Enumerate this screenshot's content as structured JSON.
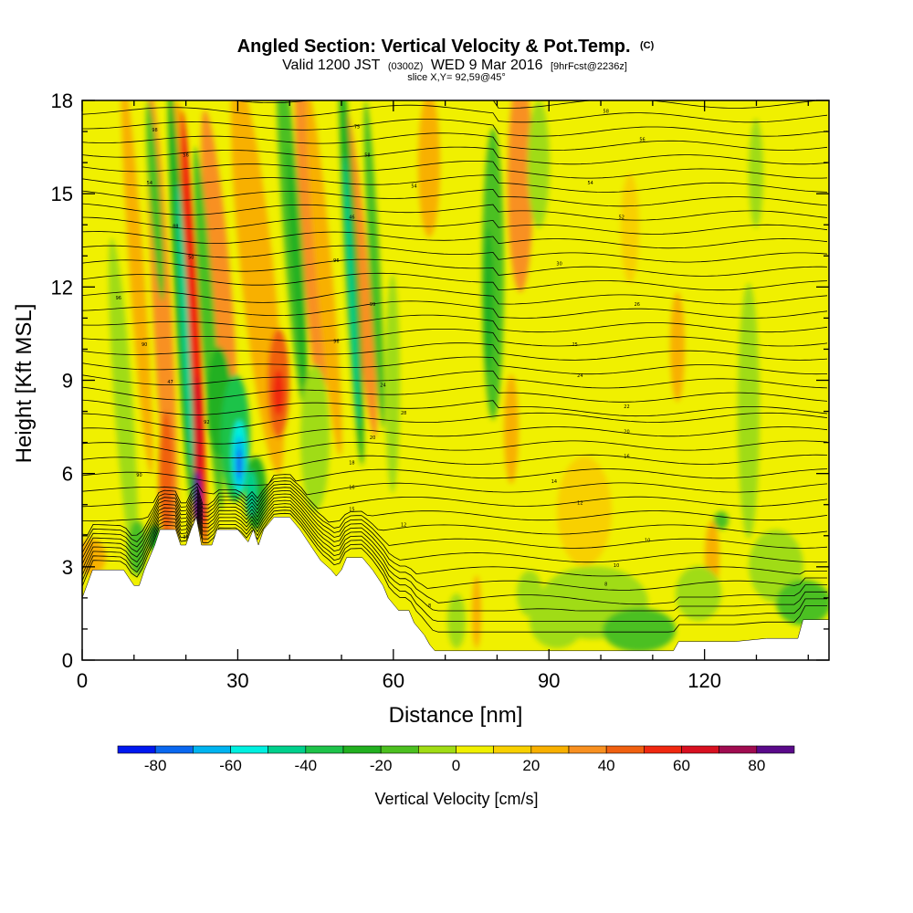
{
  "header": {
    "title": "Angled Section: Vertical Velocity & Pot.Temp.",
    "title_unit": "(C)",
    "valid_prefix": "Valid 1200 JST",
    "valid_utc": "(0300Z)",
    "valid_date": "WED 9 Mar 2016",
    "forecast_tag": "[9hrFcst@2236z]",
    "slice": "slice X,Y= 92,59@45°"
  },
  "chart_data": {
    "type": "heatmap",
    "xlabel": "Distance [nm]",
    "ylabel": "Height [Kft MSL]",
    "xlim": [
      0,
      144
    ],
    "ylim": [
      0,
      18
    ],
    "x_ticks": [
      "0",
      "30",
      "60",
      "90",
      "120"
    ],
    "y_ticks": [
      "0",
      "3",
      "6",
      "9",
      "12",
      "15",
      "18"
    ],
    "colorbar": {
      "title": "Vertical Velocity [cm/s]",
      "levels": [
        -90,
        -80,
        -70,
        -60,
        -50,
        -40,
        -30,
        -20,
        -10,
        0,
        10,
        20,
        30,
        40,
        50,
        60,
        70,
        80,
        90
      ],
      "tick_labels": [
        "-80",
        "-60",
        "-40",
        "-20",
        "0",
        "20",
        "40",
        "60",
        "80"
      ],
      "tick_values": [
        -80,
        -60,
        -40,
        -20,
        0,
        20,
        40,
        60,
        80
      ],
      "colors": [
        "#0018f0",
        "#0a68f0",
        "#00b4f0",
        "#00f0e0",
        "#00d08c",
        "#1ec34a",
        "#22b020",
        "#4cc020",
        "#a0dc14",
        "#f0f000",
        "#f8d000",
        "#f8b000",
        "#f89020",
        "#f06010",
        "#f02810",
        "#d81020",
        "#a00c50",
        "#5a0a8a"
      ]
    },
    "terrain": [
      [
        0,
        2.0
      ],
      [
        2,
        2.9
      ],
      [
        8,
        2.9
      ],
      [
        10,
        2.4
      ],
      [
        11,
        2.4
      ],
      [
        12,
        2.9
      ],
      [
        14,
        3.7
      ],
      [
        15,
        4.2
      ],
      [
        18,
        4.2
      ],
      [
        19,
        3.7
      ],
      [
        20,
        3.7
      ],
      [
        21,
        4.2
      ],
      [
        22,
        4.6
      ],
      [
        23,
        3.7
      ],
      [
        25,
        3.7
      ],
      [
        26,
        4.2
      ],
      [
        28,
        4.2
      ],
      [
        30,
        4.2
      ],
      [
        32,
        3.8
      ],
      [
        33,
        4.2
      ],
      [
        34,
        3.7
      ],
      [
        35,
        4.2
      ],
      [
        37,
        4.6
      ],
      [
        40,
        4.6
      ],
      [
        42,
        4.2
      ],
      [
        44,
        3.7
      ],
      [
        46,
        3.2
      ],
      [
        48,
        2.9
      ],
      [
        49,
        2.7
      ],
      [
        50,
        2.9
      ],
      [
        51,
        3.3
      ],
      [
        54,
        3.3
      ],
      [
        56,
        2.9
      ],
      [
        58,
        2.4
      ],
      [
        59,
        2.0
      ],
      [
        61,
        1.6
      ],
      [
        63,
        1.6
      ],
      [
        64,
        1.2
      ],
      [
        66,
        0.8
      ],
      [
        67,
        0.5
      ],
      [
        68,
        0.3
      ],
      [
        114,
        0.3
      ],
      [
        115,
        0.6
      ],
      [
        126,
        0.6
      ],
      [
        132,
        0.7
      ],
      [
        138,
        0.7
      ],
      [
        139,
        1.3
      ],
      [
        144,
        1.3
      ]
    ],
    "theta_labels": [
      [
        14,
        17.0,
        "98"
      ],
      [
        20,
        16.2,
        "56"
      ],
      [
        13,
        15.3,
        "54"
      ],
      [
        18,
        13.9,
        "88"
      ],
      [
        21,
        12.9,
        "50"
      ],
      [
        7,
        11.6,
        "96"
      ],
      [
        12,
        10.1,
        "90"
      ],
      [
        17,
        8.9,
        "47"
      ],
      [
        24,
        7.6,
        "92"
      ],
      [
        11,
        5.9,
        "90"
      ],
      [
        20,
        3.9,
        "36"
      ],
      [
        53,
        17.1,
        "75"
      ],
      [
        55,
        16.2,
        "58"
      ],
      [
        64,
        15.2,
        "54"
      ],
      [
        52,
        14.2,
        "46"
      ],
      [
        49,
        12.8,
        "96"
      ],
      [
        56,
        11.4,
        "99"
      ],
      [
        49,
        10.2,
        "96"
      ],
      [
        58,
        8.8,
        "24"
      ],
      [
        62,
        7.9,
        "28"
      ],
      [
        56,
        7.1,
        "20"
      ],
      [
        52,
        6.3,
        "18"
      ],
      [
        52,
        5.5,
        "16"
      ],
      [
        52,
        4.8,
        "15"
      ],
      [
        62,
        4.3,
        "12"
      ],
      [
        67,
        1.7,
        "8"
      ],
      [
        101,
        17.6,
        "58"
      ],
      [
        108,
        16.7,
        "56"
      ],
      [
        98,
        15.3,
        "54"
      ],
      [
        104,
        14.2,
        "52"
      ],
      [
        92,
        12.7,
        "30"
      ],
      [
        107,
        11.4,
        "26"
      ],
      [
        95,
        10.1,
        "25"
      ],
      [
        96,
        9.1,
        "24"
      ],
      [
        105,
        8.1,
        "22"
      ],
      [
        105,
        7.3,
        "20"
      ],
      [
        105,
        6.5,
        "16"
      ],
      [
        91,
        5.7,
        "14"
      ],
      [
        96,
        5.0,
        "12"
      ],
      [
        109,
        3.8,
        "10"
      ],
      [
        103,
        3.0,
        "10"
      ],
      [
        101,
        2.4,
        "8"
      ]
    ]
  }
}
